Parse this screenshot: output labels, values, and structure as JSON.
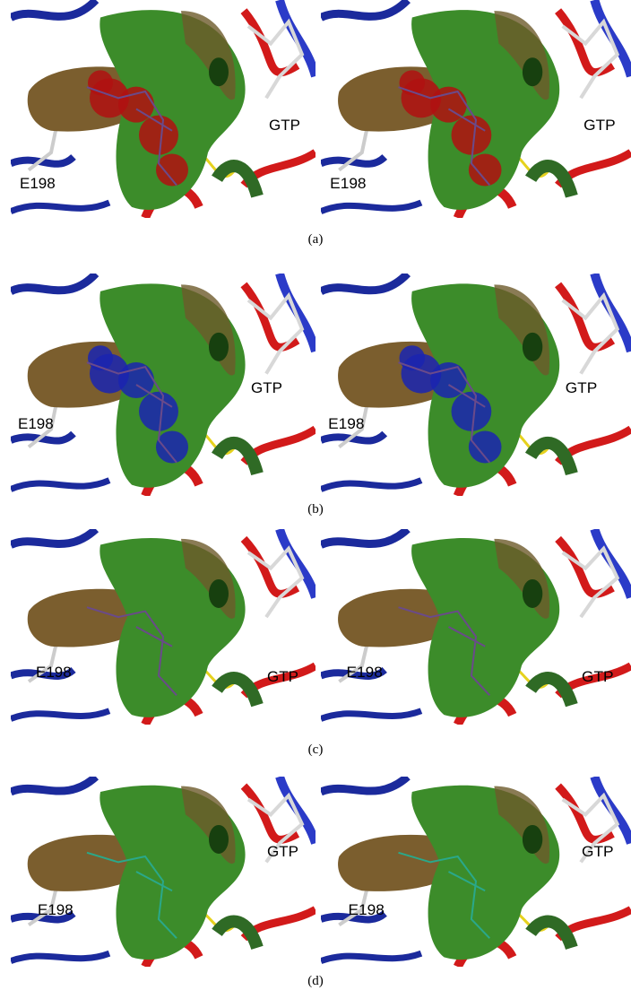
{
  "panels": [
    {
      "caption": "(a)",
      "views": [
        {
          "labels": [
            "E198",
            "GTP"
          ]
        },
        {
          "labels": [
            "E198",
            "GTP"
          ]
        }
      ]
    },
    {
      "caption": "(b)",
      "views": [
        {
          "labels": [
            "E198",
            "GTP"
          ]
        },
        {
          "labels": [
            "E198",
            "GTP"
          ]
        }
      ]
    },
    {
      "caption": "(c)",
      "views": [
        {
          "labels": [
            "E198",
            "GTP"
          ]
        },
        {
          "labels": [
            "E198",
            "GTP"
          ]
        }
      ]
    },
    {
      "caption": "(d)",
      "views": [
        {
          "labels": [
            "E198",
            "GTP"
          ]
        },
        {
          "labels": [
            "E198",
            "GTP"
          ]
        }
      ]
    }
  ]
}
